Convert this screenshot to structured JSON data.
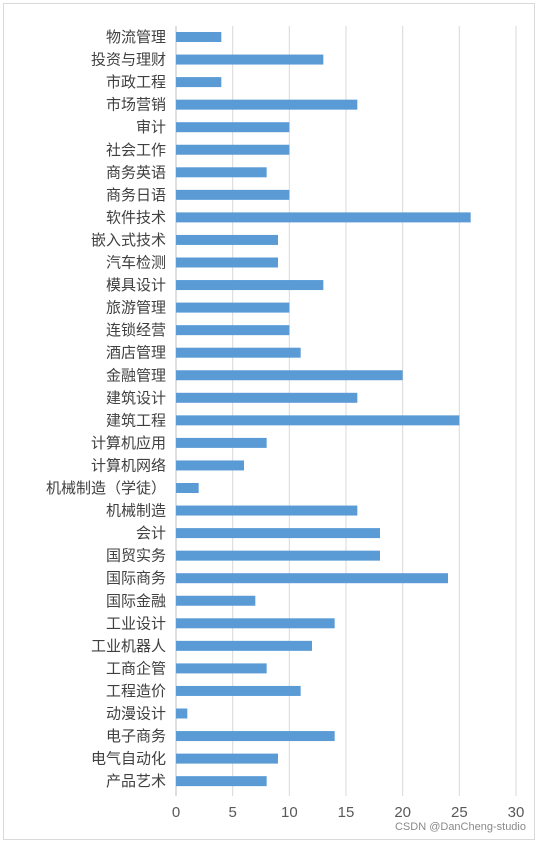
{
  "chart_data": {
    "type": "bar",
    "orientation": "horizontal",
    "categories": [
      "物流管理",
      "投资与理财",
      "市政工程",
      "市场营销",
      "审计",
      "社会工作",
      "商务英语",
      "商务日语",
      "软件技术",
      "嵌入式技术",
      "汽车检测",
      "模具设计",
      "旅游管理",
      "连锁经营",
      "酒店管理",
      "金融管理",
      "建筑设计",
      "建筑工程",
      "计算机应用",
      "计算机网络",
      "机械制造（学徒）",
      "机械制造",
      "会计",
      "国贸实务",
      "国际商务",
      "国际金融",
      "工业设计",
      "工业机器人",
      "工商企管",
      "工程造价",
      "动漫设计",
      "电子商务",
      "电气自动化",
      "产品艺术"
    ],
    "values": [
      4,
      13,
      4,
      16,
      10,
      10,
      8,
      10,
      26,
      9,
      9,
      13,
      10,
      10,
      11,
      20,
      16,
      25,
      8,
      6,
      2,
      16,
      18,
      18,
      24,
      7,
      14,
      12,
      8,
      11,
      1,
      14,
      9,
      8
    ],
    "xlim": [
      0,
      30
    ],
    "xticks": [
      0,
      5,
      10,
      15,
      20,
      25,
      30
    ],
    "grid": true,
    "bar_color": "#5b9bd5",
    "grid_color": "#d9d9d9"
  },
  "watermark": "CSDN @DanCheng-studio"
}
